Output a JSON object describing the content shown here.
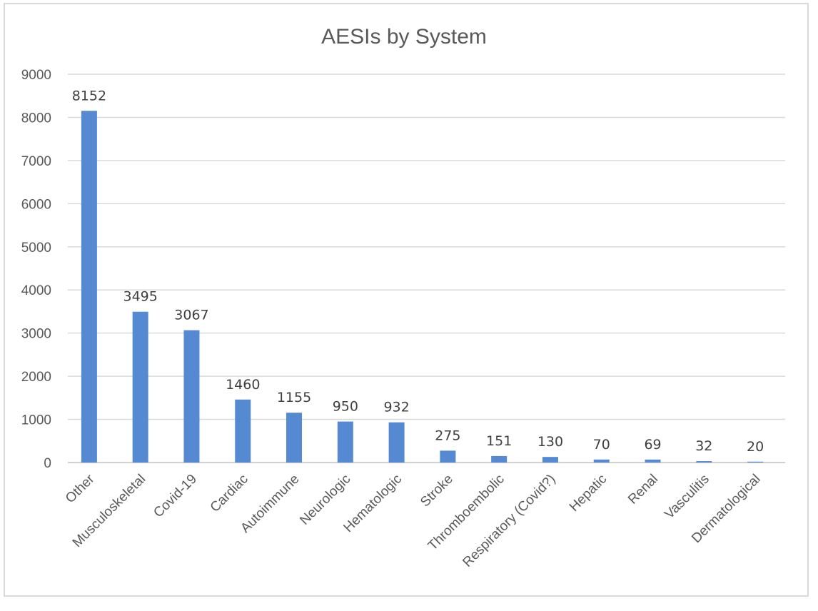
{
  "chart_data": {
    "type": "bar",
    "title": "AESIs by System",
    "xlabel": "",
    "ylabel": "",
    "categories": [
      "Other",
      "Musculoskeletal",
      "Covid-19",
      "Cardiac",
      "Autoimmune",
      "Neurologic",
      "Hematologic",
      "Stroke",
      "Thromboembolic",
      "Respiratory (Covid?)",
      "Hepatic",
      "Renal",
      "Vasculitis",
      "Dermatological"
    ],
    "values": [
      8152,
      3495,
      3067,
      1460,
      1155,
      950,
      932,
      275,
      151,
      130,
      70,
      69,
      32,
      20
    ],
    "ylim": [
      0,
      9000
    ],
    "yticks": [
      0,
      1000,
      2000,
      3000,
      4000,
      5000,
      6000,
      7000,
      8000,
      9000
    ],
    "grid": true,
    "legend": "none",
    "colors": {
      "bar": "#5589d2",
      "grid": "#d9d9d9",
      "text": "#595959"
    }
  }
}
